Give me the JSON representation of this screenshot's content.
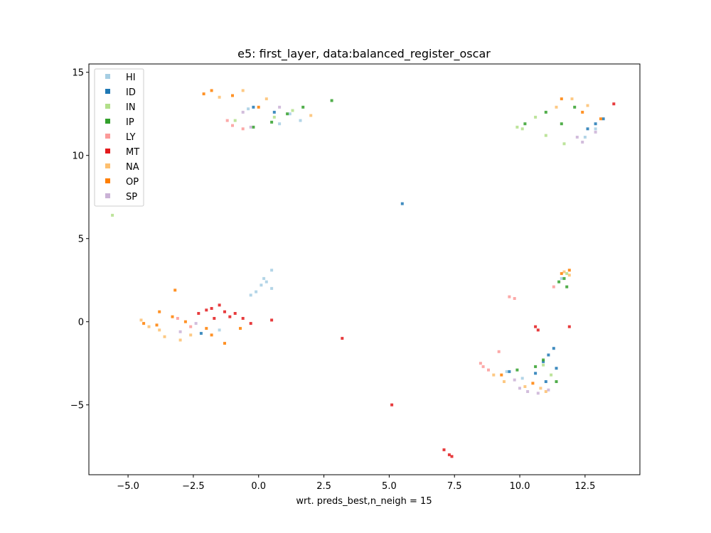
{
  "chart_data": {
    "type": "scatter",
    "title": "e5: first_layer, data:balanced_register_oscar",
    "xlabel": "wrt. preds_best,n_neigh = 15",
    "ylabel": "",
    "xlim": [
      -6.5,
      14.6
    ],
    "ylim": [
      -9.2,
      15.5
    ],
    "xticks": [
      -5.0,
      -2.5,
      0.0,
      2.5,
      5.0,
      7.5,
      10.0,
      12.5
    ],
    "xtick_labels": [
      "−5.0",
      "−2.5",
      "0.0",
      "2.5",
      "5.0",
      "7.5",
      "10.0",
      "12.5"
    ],
    "yticks": [
      -5,
      0,
      5,
      10,
      15
    ],
    "ytick_labels": [
      "−5",
      "0",
      "5",
      "10",
      "15"
    ],
    "grid": false,
    "legend_position": "upper-left",
    "series": [
      {
        "name": "HI",
        "color": "#a6cee3",
        "points": [
          [
            0.1,
            2.2
          ],
          [
            0.3,
            2.4
          ],
          [
            -0.1,
            1.8
          ],
          [
            0.5,
            2.0
          ],
          [
            0.2,
            2.6
          ],
          [
            -0.3,
            1.6
          ],
          [
            0.5,
            3.1
          ],
          [
            1.2,
            12.5
          ],
          [
            1.6,
            12.1
          ],
          [
            0.8,
            11.9
          ],
          [
            -0.4,
            12.8
          ],
          [
            12.9,
            11.6
          ],
          [
            12.5,
            11.1
          ],
          [
            11.6,
            2.6
          ],
          [
            -1.5,
            -0.5
          ],
          [
            10.1,
            -3.4
          ],
          [
            9.5,
            -3.0
          ]
        ]
      },
      {
        "name": "ID",
        "color": "#1f78b4",
        "points": [
          [
            11.3,
            -1.6
          ],
          [
            11.1,
            -2.0
          ],
          [
            10.9,
            -2.4
          ],
          [
            11.4,
            -2.8
          ],
          [
            10.6,
            -3.1
          ],
          [
            12.9,
            11.9
          ],
          [
            12.6,
            11.6
          ],
          [
            13.2,
            12.2
          ],
          [
            -0.2,
            12.9
          ],
          [
            0.6,
            12.6
          ],
          [
            -2.2,
            -0.7
          ],
          [
            5.5,
            7.1
          ],
          [
            9.6,
            -3.0
          ],
          [
            11.0,
            -3.6
          ]
        ]
      },
      {
        "name": "IN",
        "color": "#b2df8a",
        "points": [
          [
            -5.6,
            6.4
          ],
          [
            10.6,
            12.3
          ],
          [
            10.1,
            11.6
          ],
          [
            11.0,
            11.2
          ],
          [
            1.3,
            12.7
          ],
          [
            0.6,
            12.3
          ],
          [
            -0.9,
            12.1
          ],
          [
            10.9,
            -2.6
          ],
          [
            11.2,
            -3.2
          ],
          [
            11.8,
            2.9
          ],
          [
            9.9,
            11.7
          ],
          [
            11.7,
            10.7
          ]
        ]
      },
      {
        "name": "IP",
        "color": "#33a02c",
        "points": [
          [
            2.8,
            13.3
          ],
          [
            1.7,
            12.9
          ],
          [
            1.1,
            12.5
          ],
          [
            0.5,
            12.0
          ],
          [
            -0.2,
            11.7
          ],
          [
            10.2,
            11.9
          ],
          [
            11.0,
            12.6
          ],
          [
            11.6,
            11.9
          ],
          [
            12.1,
            12.9
          ],
          [
            11.7,
            2.6
          ],
          [
            11.8,
            2.1
          ],
          [
            11.5,
            2.4
          ],
          [
            10.6,
            -2.7
          ],
          [
            11.4,
            -3.6
          ],
          [
            9.9,
            -2.9
          ],
          [
            10.9,
            -2.3
          ]
        ]
      },
      {
        "name": "LY",
        "color": "#fb9a99",
        "points": [
          [
            8.6,
            -2.7
          ],
          [
            8.8,
            -2.9
          ],
          [
            8.5,
            -2.5
          ],
          [
            9.6,
            1.5
          ],
          [
            9.8,
            1.4
          ],
          [
            -1.0,
            11.8
          ],
          [
            -0.6,
            11.6
          ],
          [
            -1.2,
            12.1
          ],
          [
            -2.6,
            -0.3
          ],
          [
            -3.1,
            0.2
          ],
          [
            11.3,
            2.1
          ],
          [
            9.2,
            -1.8
          ]
        ]
      },
      {
        "name": "MT",
        "color": "#e31a1c",
        "points": [
          [
            -2.0,
            0.7
          ],
          [
            -1.8,
            0.8
          ],
          [
            -1.5,
            1.0
          ],
          [
            -1.3,
            0.6
          ],
          [
            -1.1,
            0.3
          ],
          [
            -0.9,
            0.5
          ],
          [
            -1.7,
            0.2
          ],
          [
            -2.3,
            0.5
          ],
          [
            -0.6,
            0.2
          ],
          [
            -0.3,
            -0.1
          ],
          [
            0.5,
            0.1
          ],
          [
            10.6,
            -0.3
          ],
          [
            10.7,
            -0.5
          ],
          [
            11.9,
            -0.3
          ],
          [
            13.6,
            13.1
          ],
          [
            3.2,
            -1.0
          ],
          [
            5.1,
            -5.0
          ],
          [
            7.1,
            -7.7
          ],
          [
            7.3,
            -8.0
          ],
          [
            7.4,
            -8.1
          ]
        ]
      },
      {
        "name": "NA",
        "color": "#fdbf6f",
        "points": [
          [
            -4.2,
            -0.3
          ],
          [
            -3.6,
            -0.9
          ],
          [
            -3.0,
            -1.1
          ],
          [
            -3.8,
            -0.5
          ],
          [
            -2.6,
            -0.8
          ],
          [
            -4.5,
            0.1
          ],
          [
            9.4,
            -3.6
          ],
          [
            10.2,
            -3.9
          ],
          [
            10.8,
            -4.0
          ],
          [
            9.0,
            -3.2
          ],
          [
            11.0,
            -4.2
          ],
          [
            12.0,
            13.4
          ],
          [
            12.6,
            13.0
          ],
          [
            11.4,
            12.9
          ],
          [
            -0.6,
            13.9
          ],
          [
            0.3,
            13.4
          ],
          [
            -1.5,
            13.5
          ],
          [
            11.7,
            3.0
          ],
          [
            11.9,
            2.8
          ],
          [
            2.0,
            12.4
          ]
        ]
      },
      {
        "name": "OP",
        "color": "#ff7f00",
        "points": [
          [
            -3.8,
            0.6
          ],
          [
            -3.3,
            0.3
          ],
          [
            -3.9,
            -0.2
          ],
          [
            -2.8,
            0.0
          ],
          [
            -3.2,
            1.9
          ],
          [
            -2.0,
            -0.4
          ],
          [
            -1.8,
            -0.8
          ],
          [
            -1.3,
            -1.3
          ],
          [
            -0.7,
            -0.4
          ],
          [
            -1.8,
            13.9
          ],
          [
            -2.1,
            13.7
          ],
          [
            -1.0,
            13.6
          ],
          [
            0.0,
            12.9
          ],
          [
            12.4,
            12.6
          ],
          [
            13.1,
            12.2
          ],
          [
            11.6,
            13.4
          ],
          [
            9.3,
            -3.2
          ],
          [
            10.5,
            -3.7
          ],
          [
            11.6,
            2.9
          ],
          [
            11.9,
            3.1
          ],
          [
            -4.4,
            -0.1
          ]
        ]
      },
      {
        "name": "SP",
        "color": "#cab2d6",
        "points": [
          [
            10.3,
            -4.2
          ],
          [
            10.7,
            -4.3
          ],
          [
            11.1,
            -4.1
          ],
          [
            10.0,
            -4.0
          ],
          [
            12.4,
            10.8
          ],
          [
            12.2,
            11.1
          ],
          [
            12.9,
            11.4
          ],
          [
            -0.6,
            12.6
          ],
          [
            0.8,
            12.9
          ],
          [
            -0.3,
            11.7
          ],
          [
            -2.4,
            -0.1
          ],
          [
            -3.0,
            -0.6
          ],
          [
            9.8,
            -3.5
          ]
        ]
      }
    ]
  }
}
